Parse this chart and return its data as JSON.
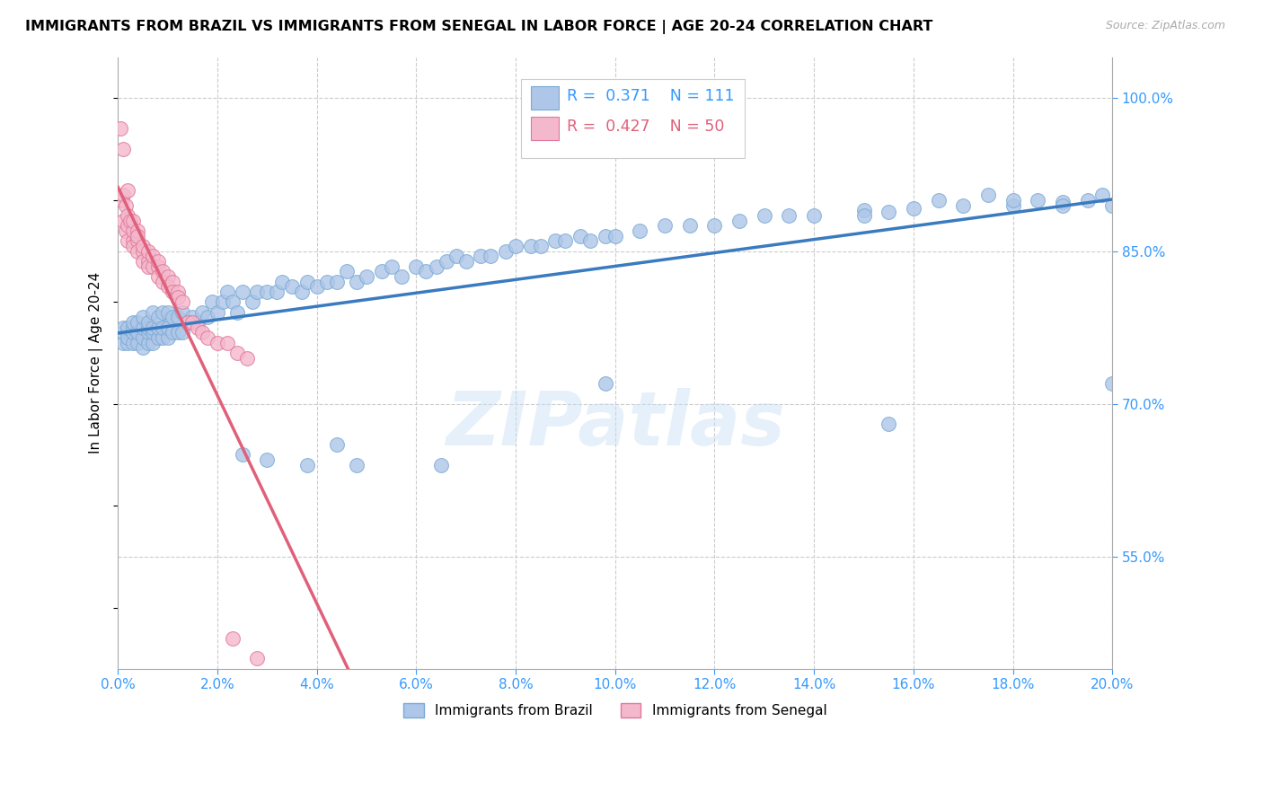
{
  "title": "IMMIGRANTS FROM BRAZIL VS IMMIGRANTS FROM SENEGAL IN LABOR FORCE | AGE 20-24 CORRELATION CHART",
  "source": "Source: ZipAtlas.com",
  "ylabel": "In Labor Force | Age 20-24",
  "y_ticks": [
    0.55,
    0.7,
    0.85,
    1.0
  ],
  "xmin": 0.0,
  "xmax": 0.2,
  "ymin": 0.44,
  "ymax": 1.04,
  "brazil_color": "#aec6e8",
  "brazil_edge": "#7aaad4",
  "senegal_color": "#f4b8cc",
  "senegal_edge": "#e07898",
  "trendline_brazil": "#3a7bbf",
  "trendline_senegal": "#e0607a",
  "legend_R_brazil": "0.371",
  "legend_N_brazil": "111",
  "legend_R_senegal": "0.427",
  "legend_N_senegal": "50",
  "watermark": "ZIPatlas",
  "brazil_x": [
    0.001,
    0.001,
    0.001,
    0.002,
    0.002,
    0.002,
    0.003,
    0.003,
    0.003,
    0.003,
    0.004,
    0.004,
    0.004,
    0.005,
    0.005,
    0.005,
    0.005,
    0.006,
    0.006,
    0.006,
    0.006,
    0.007,
    0.007,
    0.007,
    0.007,
    0.008,
    0.008,
    0.008,
    0.009,
    0.009,
    0.009,
    0.01,
    0.01,
    0.01,
    0.011,
    0.011,
    0.012,
    0.012,
    0.013,
    0.013,
    0.014,
    0.015,
    0.016,
    0.017,
    0.018,
    0.019,
    0.02,
    0.021,
    0.022,
    0.023,
    0.024,
    0.025,
    0.027,
    0.028,
    0.03,
    0.032,
    0.033,
    0.035,
    0.037,
    0.038,
    0.04,
    0.042,
    0.044,
    0.046,
    0.048,
    0.05,
    0.053,
    0.055,
    0.057,
    0.06,
    0.062,
    0.064,
    0.066,
    0.068,
    0.07,
    0.073,
    0.075,
    0.078,
    0.08,
    0.083,
    0.085,
    0.088,
    0.09,
    0.093,
    0.095,
    0.098,
    0.1,
    0.105,
    0.11,
    0.115,
    0.12,
    0.125,
    0.13,
    0.135,
    0.14,
    0.15,
    0.155,
    0.16,
    0.17,
    0.18,
    0.185,
    0.19,
    0.195,
    0.198,
    0.2,
    0.2,
    0.19,
    0.18,
    0.175,
    0.165,
    0.15
  ],
  "brazil_y": [
    0.76,
    0.77,
    0.775,
    0.76,
    0.765,
    0.775,
    0.76,
    0.77,
    0.775,
    0.78,
    0.76,
    0.77,
    0.78,
    0.755,
    0.765,
    0.775,
    0.785,
    0.76,
    0.77,
    0.775,
    0.78,
    0.76,
    0.77,
    0.775,
    0.79,
    0.765,
    0.775,
    0.785,
    0.765,
    0.775,
    0.79,
    0.765,
    0.775,
    0.79,
    0.77,
    0.785,
    0.77,
    0.785,
    0.77,
    0.79,
    0.78,
    0.785,
    0.78,
    0.79,
    0.785,
    0.8,
    0.79,
    0.8,
    0.81,
    0.8,
    0.79,
    0.81,
    0.8,
    0.81,
    0.81,
    0.81,
    0.82,
    0.815,
    0.81,
    0.82,
    0.815,
    0.82,
    0.82,
    0.83,
    0.82,
    0.825,
    0.83,
    0.835,
    0.825,
    0.835,
    0.83,
    0.835,
    0.84,
    0.845,
    0.84,
    0.845,
    0.845,
    0.85,
    0.855,
    0.855,
    0.855,
    0.86,
    0.86,
    0.865,
    0.86,
    0.865,
    0.865,
    0.87,
    0.875,
    0.875,
    0.875,
    0.88,
    0.885,
    0.885,
    0.885,
    0.89,
    0.888,
    0.892,
    0.895,
    0.895,
    0.9,
    0.898,
    0.9,
    0.905,
    0.895,
    0.72,
    0.895,
    0.9,
    0.905,
    0.9,
    0.885
  ],
  "senegal_x": [
    0.0005,
    0.0008,
    0.001,
    0.001,
    0.001,
    0.0015,
    0.0015,
    0.002,
    0.002,
    0.002,
    0.002,
    0.0025,
    0.003,
    0.003,
    0.003,
    0.003,
    0.004,
    0.004,
    0.004,
    0.004,
    0.005,
    0.005,
    0.005,
    0.006,
    0.006,
    0.006,
    0.007,
    0.007,
    0.008,
    0.008,
    0.008,
    0.009,
    0.009,
    0.01,
    0.01,
    0.011,
    0.011,
    0.012,
    0.012,
    0.013,
    0.014,
    0.015,
    0.016,
    0.017,
    0.018,
    0.02,
    0.022,
    0.024,
    0.026,
    0.028
  ],
  "senegal_y": [
    0.97,
    0.9,
    0.88,
    0.905,
    0.95,
    0.87,
    0.895,
    0.875,
    0.885,
    0.91,
    0.86,
    0.88,
    0.86,
    0.87,
    0.88,
    0.855,
    0.86,
    0.87,
    0.85,
    0.865,
    0.85,
    0.84,
    0.855,
    0.84,
    0.85,
    0.835,
    0.835,
    0.845,
    0.835,
    0.84,
    0.825,
    0.83,
    0.82,
    0.825,
    0.815,
    0.82,
    0.81,
    0.81,
    0.805,
    0.8,
    0.78,
    0.78,
    0.775,
    0.77,
    0.765,
    0.76,
    0.76,
    0.75,
    0.745,
    0.45
  ],
  "brazil_low_x": [
    0.025,
    0.03,
    0.038,
    0.044,
    0.048,
    0.065,
    0.098,
    0.155
  ],
  "brazil_low_y": [
    0.65,
    0.645,
    0.64,
    0.66,
    0.64,
    0.64,
    0.72,
    0.68
  ],
  "senegal_low_x": [
    0.023
  ],
  "senegal_low_y": [
    0.47
  ]
}
